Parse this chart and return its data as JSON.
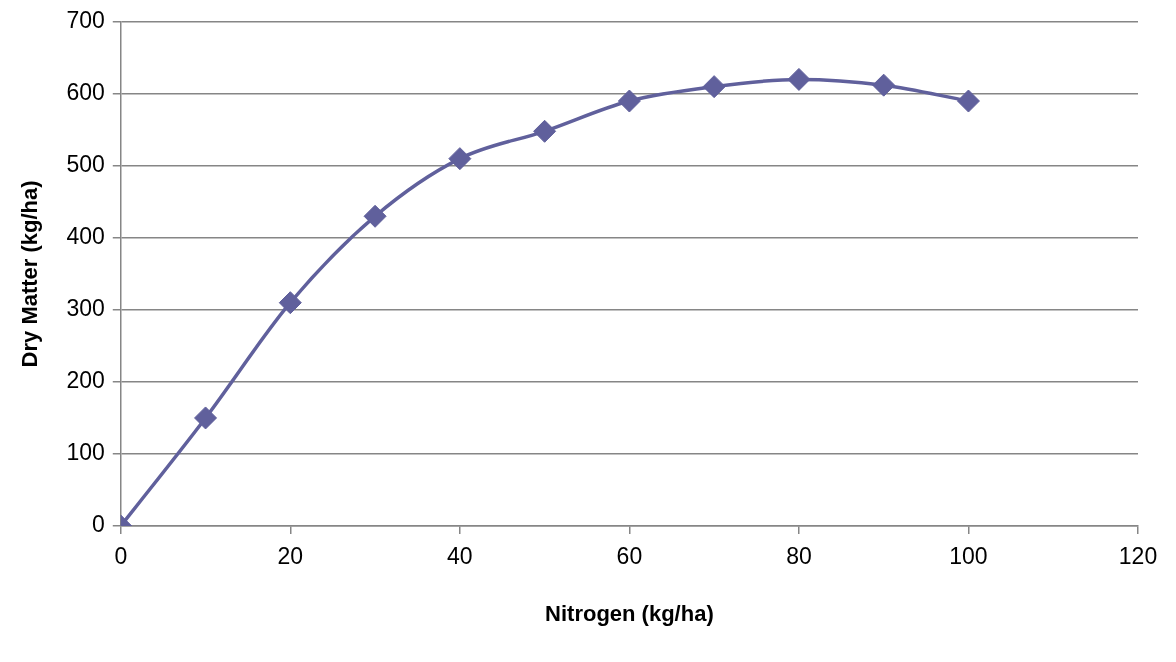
{
  "chart_data": {
    "type": "line",
    "xlabel": "Nitrogen (kg/ha)",
    "ylabel": "Dry Matter (kg/ha)",
    "x": [
      0,
      10,
      20,
      30,
      40,
      50,
      60,
      70,
      80,
      90,
      100
    ],
    "series": [
      {
        "color": "#60609c",
        "values": [
          0,
          150,
          310,
          430,
          510,
          548,
          590,
          610,
          620,
          612,
          590
        ]
      }
    ],
    "xlim": [
      0,
      120
    ],
    "xticks": [
      0,
      20,
      40,
      60,
      80,
      100,
      120
    ],
    "ylim": [
      0,
      700
    ],
    "yticks": [
      0,
      100,
      200,
      300,
      400,
      500,
      600,
      700
    ],
    "grid": "y",
    "legend": false,
    "marker": "diamond",
    "line_style": "solid"
  }
}
